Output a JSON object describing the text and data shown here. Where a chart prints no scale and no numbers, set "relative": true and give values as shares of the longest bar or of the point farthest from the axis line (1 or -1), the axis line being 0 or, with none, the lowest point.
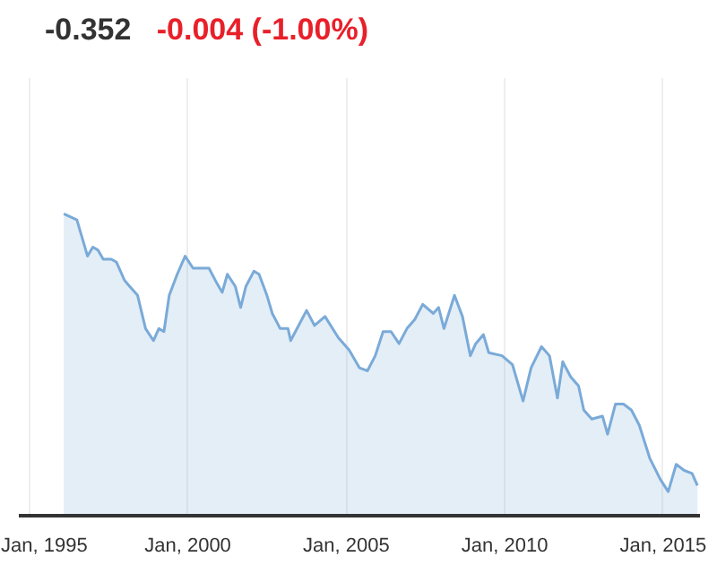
{
  "chart_data": {
    "type": "area",
    "title": "-0.352",
    "subtitle": "-0.004 (-1.00%)",
    "relative": true,
    "grid": "x",
    "x": [
      "1996-02",
      "1996-07",
      "1996-09",
      "1996-11",
      "1997-01",
      "1997-03",
      "1997-05",
      "1997-08",
      "1997-10",
      "1998-01",
      "1998-03",
      "1998-06",
      "1998-09",
      "1998-12",
      "1999-02",
      "1999-04",
      "1999-06",
      "1999-09",
      "1999-12",
      "2000-03",
      "2000-06",
      "2000-09",
      "2000-12",
      "2001-02",
      "2001-04",
      "2001-07",
      "2001-09",
      "2001-11",
      "2002-02",
      "2002-04",
      "2002-07",
      "2002-09",
      "2002-12",
      "2003-03",
      "2003-04",
      "2003-07",
      "2003-10",
      "2004-01",
      "2004-05",
      "2004-10",
      "2005-02",
      "2005-06",
      "2005-09",
      "2005-12",
      "2006-03",
      "2006-06",
      "2006-09",
      "2006-12",
      "2007-03",
      "2007-06",
      "2007-10",
      "2007-12",
      "2008-02",
      "2008-06",
      "2008-09",
      "2008-12",
      "2009-02",
      "2009-05",
      "2009-07",
      "2009-12",
      "2010-04",
      "2010-08",
      "2010-11",
      "2011-03",
      "2011-06",
      "2011-09",
      "2011-11",
      "2012-02",
      "2012-05",
      "2012-07",
      "2012-10",
      "2013-02",
      "2013-04",
      "2013-07",
      "2013-10",
      "2014-01",
      "2014-04",
      "2014-08",
      "2014-12",
      "2015-03",
      "2015-06",
      "2015-09",
      "2015-12",
      "2016-02"
    ],
    "series": [
      {
        "color": "#7aaad8",
        "values": [
          1.0,
          0.98,
          0.92,
          0.86,
          0.89,
          0.88,
          0.85,
          0.85,
          0.84,
          0.78,
          0.76,
          0.73,
          0.62,
          0.58,
          0.62,
          0.61,
          0.73,
          0.8,
          0.86,
          0.82,
          0.82,
          0.82,
          0.77,
          0.74,
          0.8,
          0.76,
          0.69,
          0.76,
          0.81,
          0.8,
          0.73,
          0.67,
          0.62,
          0.62,
          0.58,
          0.63,
          0.68,
          0.63,
          0.66,
          0.59,
          0.55,
          0.49,
          0.48,
          0.53,
          0.61,
          0.61,
          0.57,
          0.62,
          0.65,
          0.7,
          0.67,
          0.69,
          0.62,
          0.73,
          0.66,
          0.53,
          0.57,
          0.6,
          0.54,
          0.53,
          0.5,
          0.38,
          0.49,
          0.56,
          0.53,
          0.39,
          0.51,
          0.46,
          0.43,
          0.35,
          0.32,
          0.33,
          0.27,
          0.37,
          0.37,
          0.35,
          0.3,
          0.19,
          0.12,
          0.08,
          0.17,
          0.15,
          0.14,
          0.1
        ]
      }
    ],
    "xlim": [
      "1994-09",
      "2016-03"
    ],
    "xticks": [
      {
        "value": "1995-01",
        "label": "Jan, 1995"
      },
      {
        "value": "2000-01",
        "label": "Jan, 2000"
      },
      {
        "value": "2005-01",
        "label": "Jan, 2005"
      },
      {
        "value": "2010-01",
        "label": "Jan, 2010"
      },
      {
        "value": "2015-01",
        "label": "Jan, 2015"
      }
    ]
  }
}
